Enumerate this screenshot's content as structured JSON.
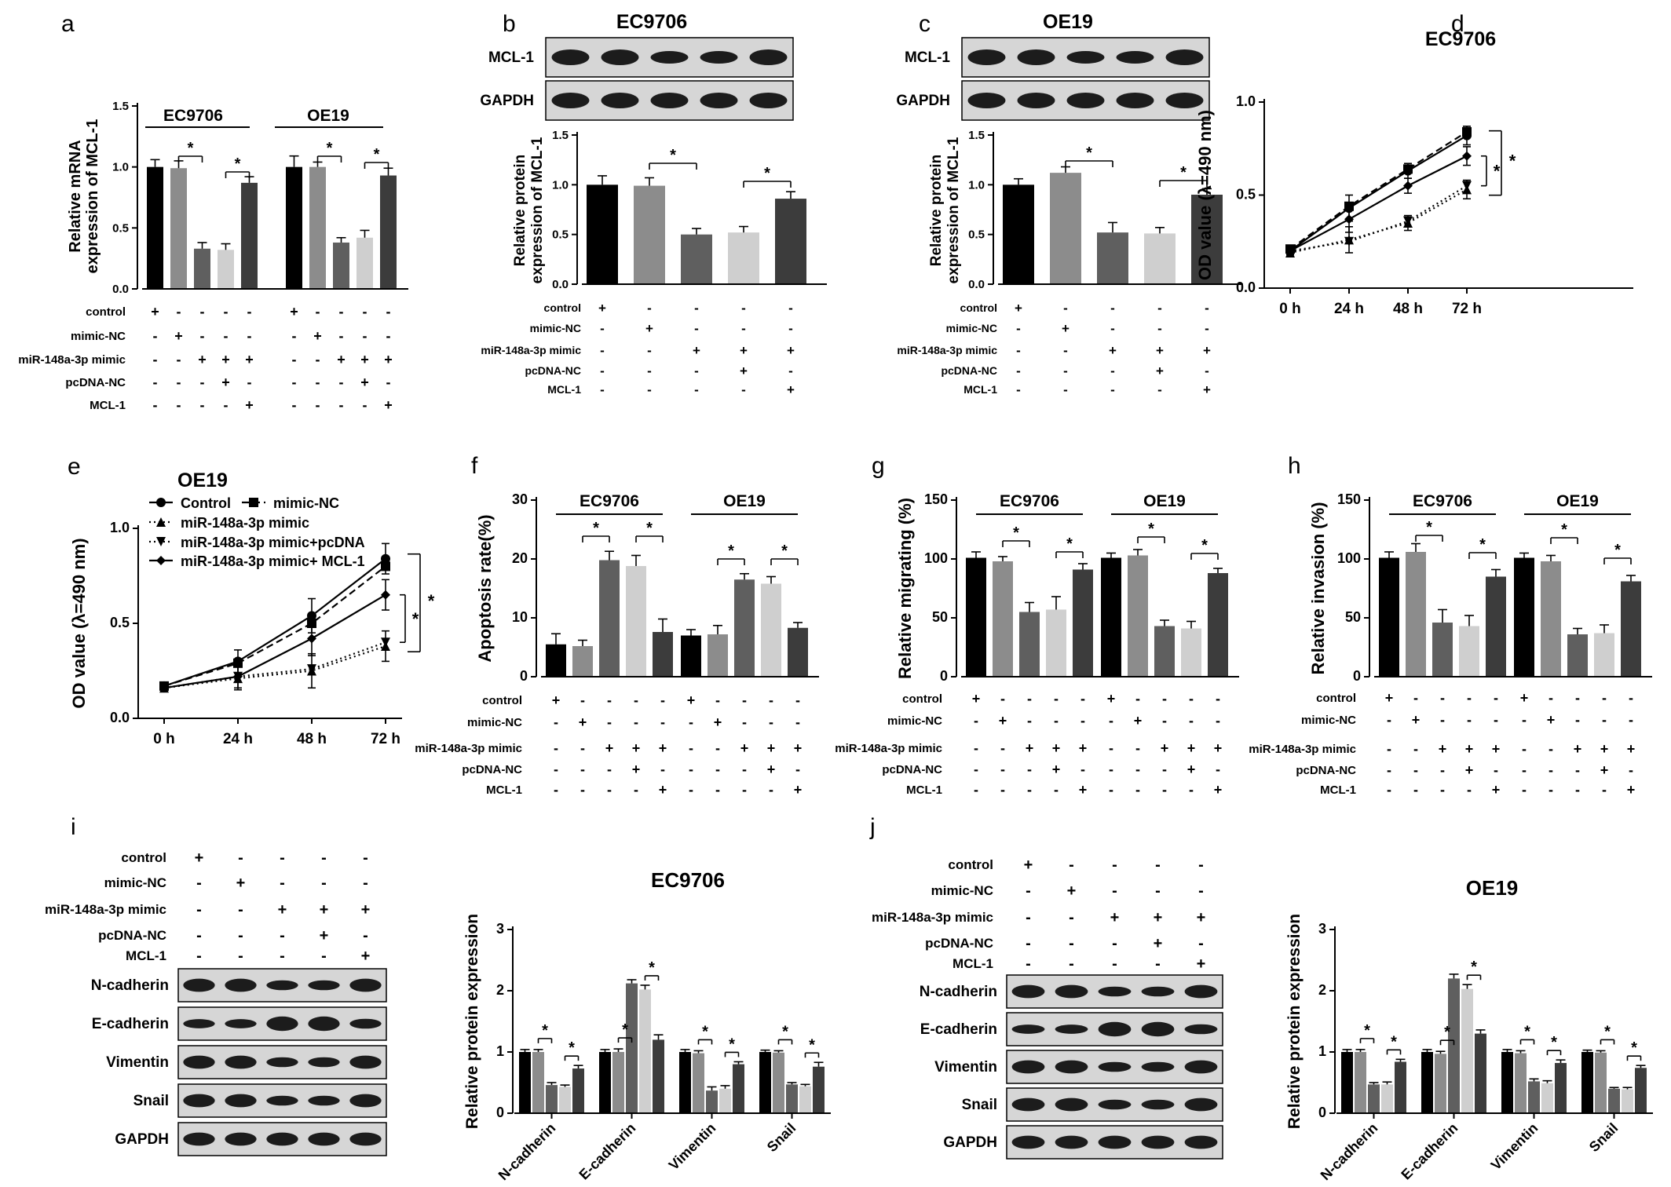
{
  "colors": {
    "bars": [
      "#000000",
      "#8c8c8c",
      "#5f5f5f",
      "#cfcfcf",
      "#3c3c3c"
    ],
    "blot_bg": "#d6d6d6",
    "band": "#1c1c1c"
  },
  "conditions": {
    "rows": [
      "control",
      "mimic-NC",
      "miR-148a-3p mimic",
      "pcDNA-NC",
      "MCL-1"
    ],
    "signs": [
      [
        "+",
        "-",
        "-",
        "-",
        "-"
      ],
      [
        "-",
        "+",
        "-",
        "-",
        "-"
      ],
      [
        "-",
        "-",
        "+",
        "+",
        "+"
      ],
      [
        "-",
        "-",
        "-",
        "+",
        "-"
      ],
      [
        "-",
        "-",
        "-",
        "-",
        "+"
      ]
    ]
  },
  "time_labels": [
    "0 h",
    "24 h",
    "48 h",
    "72 h"
  ],
  "star": "*",
  "panels": {
    "a": {
      "letter": "a",
      "groups": [
        "EC9706",
        "OE19"
      ],
      "ylabel": [
        "Relative mRNA",
        "expression of MCL-1"
      ],
      "ticks": [
        "0.0",
        "0.5",
        "1.0",
        "1.5"
      ]
    },
    "b": {
      "letter": "b",
      "title": "EC9706",
      "blot_labels": [
        "MCL-1",
        "GAPDH"
      ],
      "ylabel": [
        "Relative protein",
        "expression of MCL-1"
      ],
      "ticks": [
        "0.0",
        "0.5",
        "1.0",
        "1.5"
      ]
    },
    "c": {
      "letter": "c",
      "title": "OE19",
      "blot_labels": [
        "MCL-1",
        "GAPDH"
      ],
      "ylabel": [
        "Relative protein",
        "expression of MCL-1"
      ],
      "ticks": [
        "0.0",
        "0.5",
        "1.0",
        "1.5"
      ]
    },
    "d": {
      "letter": "d",
      "title": "EC9706",
      "ylabel": "OD value (λ=490 nm)",
      "ticks": [
        "0.0",
        "0.5",
        "1.0"
      ]
    },
    "e": {
      "letter": "e",
      "title": "OE19",
      "ylabel": "OD value (λ=490 nm)",
      "ticks": [
        "0.0",
        "0.5",
        "1.0"
      ],
      "legend": [
        "Control",
        "mimic-NC",
        "miR-148a-3p  mimic",
        "miR-148a-3p  mimic+pcDNA",
        "miR-148a-3p  mimic+ MCL-1"
      ]
    },
    "f": {
      "letter": "f",
      "groups": [
        "EC9706",
        "OE19"
      ],
      "ylabel": "Apoptosis rate(%)",
      "ticks": [
        "0",
        "10",
        "20",
        "30"
      ]
    },
    "g": {
      "letter": "g",
      "groups": [
        "EC9706",
        "OE19"
      ],
      "ylabel": "Relative migrating (%)",
      "ticks": [
        "0",
        "50",
        "100",
        "150"
      ]
    },
    "h": {
      "letter": "h",
      "groups": [
        "EC9706",
        "OE19"
      ],
      "ylabel": "Relative invasion (%)",
      "ticks": [
        "0",
        "50",
        "100",
        "150"
      ]
    },
    "i": {
      "letter": "i",
      "title": "EC9706",
      "blot_labels": [
        "N-cadherin",
        "E-cadherin",
        "Vimentin",
        "Snail",
        "GAPDH"
      ],
      "ylabel": "Relative protein expression",
      "ticks": [
        "0",
        "1",
        "2",
        "3"
      ]
    },
    "j": {
      "letter": "j",
      "title": "OE19",
      "blot_labels": [
        "N-cadherin",
        "E-cadherin",
        "Vimentin",
        "Snail",
        "GAPDH"
      ],
      "ylabel": "Relative protein expression",
      "ticks": [
        "0",
        "1",
        "2",
        "3"
      ]
    }
  },
  "chart_data": [
    {
      "id": "a",
      "type": "bar",
      "ylabel": "Relative mRNA expression of MCL-1",
      "ylim": [
        0,
        1.5
      ],
      "categories": [
        "EC9706",
        "OE19"
      ],
      "series": [
        {
          "name": "control",
          "values": [
            1.0,
            1.0
          ]
        },
        {
          "name": "mimic-NC",
          "values": [
            0.99,
            1.0
          ]
        },
        {
          "name": "miR-148a-3p mimic",
          "values": [
            0.33,
            0.38
          ]
        },
        {
          "name": "miR-148a-3p mimic + pcDNA-NC",
          "values": [
            0.32,
            0.42
          ]
        },
        {
          "name": "miR-148a-3p mimic + MCL-1",
          "values": [
            0.87,
            0.93
          ]
        }
      ],
      "errors": [
        [
          0.06,
          0.09
        ],
        [
          0.06,
          0.04
        ],
        [
          0.05,
          0.04
        ],
        [
          0.05,
          0.06
        ],
        [
          0.05,
          0.06
        ]
      ]
    },
    {
      "id": "b",
      "type": "bar",
      "title": "EC9706",
      "ylabel": "Relative protein expression of MCL-1",
      "ylim": [
        0,
        1.5
      ],
      "values": [
        1.0,
        0.99,
        0.5,
        0.52,
        0.86
      ],
      "errors": [
        0.09,
        0.08,
        0.06,
        0.06,
        0.07
      ]
    },
    {
      "id": "c",
      "type": "bar",
      "title": "OE19",
      "ylabel": "Relative protein expression of MCL-1",
      "ylim": [
        0,
        1.5
      ],
      "values": [
        1.0,
        1.12,
        0.52,
        0.51,
        0.9
      ],
      "errors": [
        0.06,
        0.06,
        0.1,
        0.06,
        0.06
      ]
    },
    {
      "id": "d",
      "type": "line",
      "title": "EC9706",
      "ylabel": "OD value (λ=490 nm)",
      "ylim": [
        0,
        1.0
      ],
      "x": [
        "0 h",
        "24 h",
        "48 h",
        "72 h"
      ],
      "series": [
        {
          "name": "Control",
          "values": [
            0.2,
            0.43,
            0.63,
            0.82
          ]
        },
        {
          "name": "mimic-NC",
          "values": [
            0.21,
            0.44,
            0.64,
            0.84
          ]
        },
        {
          "name": "miR-148a-3p  mimic",
          "values": [
            0.19,
            0.26,
            0.35,
            0.53
          ]
        },
        {
          "name": "miR-148a-3p  mimic+pcDNA",
          "values": [
            0.2,
            0.25,
            0.36,
            0.55
          ]
        },
        {
          "name": "miR-148a-3p  mimic+ MCL-1",
          "values": [
            0.2,
            0.37,
            0.55,
            0.71
          ]
        }
      ],
      "error": [
        0.02,
        0.07,
        0.04,
        0.05
      ]
    },
    {
      "id": "e",
      "type": "line",
      "title": "OE19",
      "ylabel": "OD value (λ=490 nm)",
      "ylim": [
        0,
        1.0
      ],
      "x": [
        "0 h",
        "24 h",
        "48 h",
        "72 h"
      ],
      "series": [
        {
          "name": "Control",
          "values": [
            0.17,
            0.3,
            0.54,
            0.84
          ]
        },
        {
          "name": "mimic-NC",
          "values": [
            0.17,
            0.29,
            0.5,
            0.8
          ]
        },
        {
          "name": "miR-148a-3p  mimic",
          "values": [
            0.16,
            0.21,
            0.25,
            0.38
          ]
        },
        {
          "name": "miR-148a-3p  mimic+pcDNA",
          "values": [
            0.16,
            0.22,
            0.26,
            0.4
          ]
        },
        {
          "name": "miR-148a-3p  mimic+ MCL-1",
          "values": [
            0.16,
            0.22,
            0.42,
            0.65
          ]
        }
      ],
      "error": [
        0.02,
        0.06,
        0.09,
        0.08
      ]
    },
    {
      "id": "f",
      "type": "bar",
      "ylabel": "Apoptosis rate(%)",
      "ylim": [
        0,
        30
      ],
      "categories": [
        "EC9706",
        "OE19"
      ],
      "series": [
        {
          "name": "control",
          "values": [
            5.5,
            7.0
          ]
        },
        {
          "name": "mimic-NC",
          "values": [
            5.2,
            7.2
          ]
        },
        {
          "name": "miR-148a-3p mimic",
          "values": [
            19.8,
            16.5
          ]
        },
        {
          "name": "miR-148a-3p mimic + pcDNA-NC",
          "values": [
            18.8,
            15.8
          ]
        },
        {
          "name": "miR-148a-3p mimic + MCL-1",
          "values": [
            7.6,
            8.3
          ]
        }
      ],
      "errors": [
        [
          1.8,
          1.0
        ],
        [
          1.0,
          1.5
        ],
        [
          1.5,
          1.0
        ],
        [
          1.8,
          1.2
        ],
        [
          2.2,
          0.9
        ]
      ]
    },
    {
      "id": "g",
      "type": "bar",
      "ylabel": "Relative migrating (%)",
      "ylim": [
        0,
        150
      ],
      "categories": [
        "EC9706",
        "OE19"
      ],
      "series": [
        {
          "name": "control",
          "values": [
            101,
            101
          ]
        },
        {
          "name": "mimic-NC",
          "values": [
            98,
            103
          ]
        },
        {
          "name": "miR-148a-3p mimic",
          "values": [
            55,
            43
          ]
        },
        {
          "name": "miR-148a-3p mimic + pcDNA-NC",
          "values": [
            57,
            41
          ]
        },
        {
          "name": "miR-148a-3p mimic + MCL-1",
          "values": [
            91,
            88
          ]
        }
      ],
      "errors": [
        [
          5,
          4
        ],
        [
          4,
          5
        ],
        [
          8,
          5
        ],
        [
          11,
          6
        ],
        [
          5,
          4
        ]
      ]
    },
    {
      "id": "h",
      "type": "bar",
      "ylabel": "Relative invasion (%)",
      "ylim": [
        0,
        150
      ],
      "categories": [
        "EC9706",
        "OE19"
      ],
      "series": [
        {
          "name": "control",
          "values": [
            101,
            101
          ]
        },
        {
          "name": "mimic-NC",
          "values": [
            106,
            98
          ]
        },
        {
          "name": "miR-148a-3p mimic",
          "values": [
            46,
            36
          ]
        },
        {
          "name": "miR-148a-3p mimic + pcDNA-NC",
          "values": [
            43,
            37
          ]
        },
        {
          "name": "miR-148a-3p mimic + MCL-1",
          "values": [
            85,
            81
          ]
        }
      ],
      "errors": [
        [
          5,
          4
        ],
        [
          7,
          5
        ],
        [
          11,
          5
        ],
        [
          9,
          7
        ],
        [
          6,
          5
        ]
      ]
    },
    {
      "id": "i",
      "type": "bar",
      "title": "EC9706",
      "ylabel": "Relative protein expression",
      "ylim": [
        0,
        3
      ],
      "categories": [
        "N-cadherin",
        "E-cadherin",
        "Vimentin",
        "Snail"
      ],
      "series": [
        {
          "name": "control",
          "values": [
            1.0,
            1.0,
            1.0,
            1.0
          ]
        },
        {
          "name": "mimic-NC",
          "values": [
            1.0,
            1.0,
            0.98,
            0.99
          ]
        },
        {
          "name": "miR-148a-3p mimic",
          "values": [
            0.46,
            2.12,
            0.37,
            0.47
          ]
        },
        {
          "name": "miR-148a-3p mimic + pcDNA-NC",
          "values": [
            0.43,
            2.02,
            0.4,
            0.44
          ]
        },
        {
          "name": "miR-148a-3p mimic + MCL-1",
          "values": [
            0.73,
            1.2,
            0.8,
            0.76
          ]
        }
      ],
      "errors": [
        [
          0.04,
          0.04,
          0.04,
          0.03
        ],
        [
          0.04,
          0.05,
          0.04,
          0.03
        ],
        [
          0.04,
          0.06,
          0.06,
          0.03
        ],
        [
          0.03,
          0.07,
          0.05,
          0.03
        ],
        [
          0.05,
          0.08,
          0.04,
          0.07
        ]
      ]
    },
    {
      "id": "j",
      "type": "bar",
      "title": "OE19",
      "ylabel": "Relative protein expression",
      "ylim": [
        0,
        3
      ],
      "categories": [
        "N-cadherin",
        "E-cadherin",
        "Vimentin",
        "Snail"
      ],
      "series": [
        {
          "name": "control",
          "values": [
            1.0,
            1.0,
            1.0,
            1.0
          ]
        },
        {
          "name": "mimic-NC",
          "values": [
            1.0,
            0.97,
            0.98,
            0.99
          ]
        },
        {
          "name": "miR-148a-3p mimic",
          "values": [
            0.47,
            2.2,
            0.52,
            0.4
          ]
        },
        {
          "name": "miR-148a-3p mimic + pcDNA-NC",
          "values": [
            0.47,
            2.03,
            0.49,
            0.39
          ]
        },
        {
          "name": "miR-148a-3p mimic + MCL-1",
          "values": [
            0.84,
            1.3,
            0.82,
            0.74
          ]
        }
      ],
      "errors": [
        [
          0.04,
          0.04,
          0.04,
          0.03
        ],
        [
          0.04,
          0.04,
          0.04,
          0.03
        ],
        [
          0.03,
          0.07,
          0.04,
          0.02
        ],
        [
          0.04,
          0.07,
          0.04,
          0.03
        ],
        [
          0.04,
          0.06,
          0.05,
          0.04
        ]
      ]
    }
  ]
}
